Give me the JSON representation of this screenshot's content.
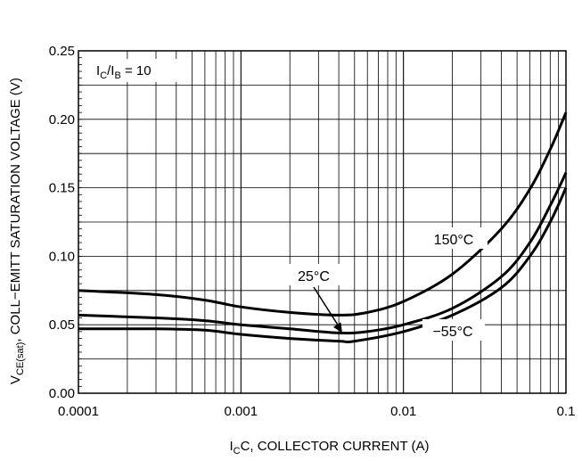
{
  "chart_data": {
    "type": "line",
    "title": "",
    "xlabel": "C, COLLECTOR CURRENT (A)",
    "xlabel_prefix": "I",
    "xlabel_sub": "C",
    "ylabel": ", COLL−EMITT SATURATION VOLTAGE (V)",
    "ylabel_prefix": "V",
    "ylabel_sub": "CE(sat)",
    "x_scale": "log",
    "xlim": [
      0.0001,
      0.1
    ],
    "ylim": [
      0.0,
      0.25
    ],
    "x_ticks": [
      0.0001,
      0.001,
      0.01,
      0.1
    ],
    "x_tick_labels": [
      "0.0001",
      "0.001",
      "0.01",
      "0.1"
    ],
    "y_ticks": [
      0.0,
      0.05,
      0.1,
      0.15,
      0.2,
      0.25
    ],
    "y_tick_labels": [
      "0.00",
      "0.05",
      "0.10",
      "0.15",
      "0.20",
      "0.25"
    ],
    "grid": true,
    "condition": {
      "parts": [
        "I",
        "C",
        "/I",
        "B",
        " = 10"
      ]
    },
    "series": [
      {
        "name": "150°C",
        "x": [
          0.0001,
          0.0003,
          0.0006,
          0.001,
          0.002,
          0.004,
          0.006,
          0.01,
          0.02,
          0.04,
          0.06,
          0.08,
          0.1
        ],
        "y": [
          0.075,
          0.072,
          0.068,
          0.063,
          0.059,
          0.057,
          0.059,
          0.067,
          0.087,
          0.12,
          0.149,
          0.178,
          0.205
        ]
      },
      {
        "name": "25°C",
        "x": [
          0.0001,
          0.0003,
          0.0006,
          0.001,
          0.002,
          0.004,
          0.006,
          0.01,
          0.02,
          0.04,
          0.06,
          0.08,
          0.1
        ],
        "y": [
          0.057,
          0.055,
          0.053,
          0.05,
          0.047,
          0.044,
          0.045,
          0.05,
          0.062,
          0.085,
          0.11,
          0.137,
          0.161
        ]
      },
      {
        "name": "−55°C",
        "x": [
          0.0001,
          0.0003,
          0.0006,
          0.001,
          0.002,
          0.004,
          0.005,
          0.01,
          0.02,
          0.04,
          0.06,
          0.08,
          0.1
        ],
        "y": [
          0.047,
          0.047,
          0.046,
          0.043,
          0.04,
          0.038,
          0.038,
          0.045,
          0.057,
          0.077,
          0.1,
          0.125,
          0.15
        ]
      }
    ],
    "annotations": [
      {
        "text": "150°C",
        "series": 0
      },
      {
        "text": "25°C",
        "series": 1,
        "arrow_to": [
          0.0042,
          0.044
        ]
      },
      {
        "text": "−55°C",
        "series": 2
      }
    ]
  }
}
